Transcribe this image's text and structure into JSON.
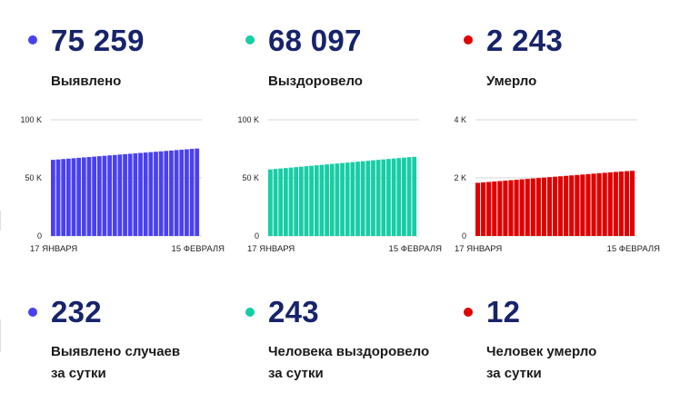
{
  "colors": {
    "blue": "#4a40f2",
    "teal": "#16cda6",
    "red": "#e00000",
    "number": "#17236b"
  },
  "totals": [
    {
      "value": "75 259",
      "label": "Выявлено",
      "color": "#4a40f2"
    },
    {
      "value": "68 097",
      "label": "Выздоровело",
      "color": "#16cda6"
    },
    {
      "value": "2 243",
      "label": "Умерло",
      "color": "#e00000"
    }
  ],
  "daily": [
    {
      "value": "232",
      "label_line1": "Выявлено случаев",
      "label_line2": "за сутки",
      "color": "#4a40f2"
    },
    {
      "value": "243",
      "label_line1": "Человека выздоровело",
      "label_line2": "за сутки",
      "color": "#16cda6"
    },
    {
      "value": "12",
      "label_line1": "Человек умерло",
      "label_line2": "за сутки",
      "color": "#e00000"
    }
  ],
  "chart_data": [
    {
      "type": "bar",
      "color": "#4a40f2",
      "x_start_label": "17 ЯНВАРЯ",
      "x_end_label": "15 ФЕВРАЛЯ",
      "ylim": [
        0,
        100000
      ],
      "yticks": [
        0,
        50000,
        100000
      ],
      "ytick_labels": [
        "0",
        "50 K",
        "100 K"
      ],
      "values": [
        65500,
        65850,
        66200,
        66550,
        66900,
        67250,
        67600,
        67950,
        68300,
        68650,
        69000,
        69350,
        69700,
        70050,
        70400,
        70750,
        71100,
        71450,
        71800,
        72150,
        72500,
        72850,
        73200,
        73550,
        73900,
        74250,
        74600,
        74950,
        75259
      ]
    },
    {
      "type": "bar",
      "color": "#16cda6",
      "x_start_label": "17 ЯНВАРЯ",
      "x_end_label": "15 ФЕВРАЛЯ",
      "ylim": [
        0,
        100000
      ],
      "yticks": [
        0,
        50000,
        100000
      ],
      "ytick_labels": [
        "0",
        "50 K",
        "100 K"
      ],
      "values": [
        57300,
        57690,
        58080,
        58470,
        58860,
        59250,
        59640,
        60030,
        60420,
        60810,
        61200,
        61590,
        61980,
        62370,
        62760,
        63150,
        63540,
        63930,
        64320,
        64710,
        65100,
        65490,
        65880,
        66270,
        66660,
        67050,
        67440,
        67830,
        68097
      ]
    },
    {
      "type": "bar",
      "color": "#e00000",
      "x_start_label": "17 ЯНВАРЯ",
      "x_end_label": "15 ФЕВРАЛЯ",
      "ylim": [
        0,
        4000
      ],
      "yticks": [
        0,
        2000,
        4000
      ],
      "ytick_labels": [
        "0",
        "2 K",
        "4 K"
      ],
      "values": [
        1830,
        1845,
        1860,
        1875,
        1890,
        1905,
        1920,
        1935,
        1950,
        1965,
        1980,
        1995,
        2010,
        2025,
        2040,
        2055,
        2070,
        2085,
        2100,
        2115,
        2130,
        2145,
        2160,
        2175,
        2190,
        2205,
        2220,
        2232,
        2243
      ]
    }
  ]
}
